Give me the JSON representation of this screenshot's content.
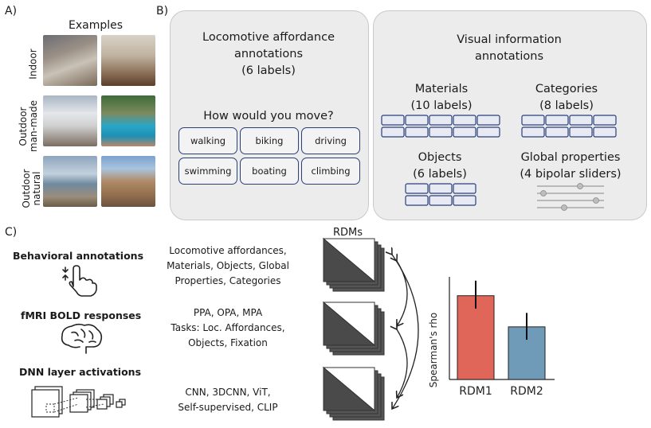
{
  "panel_a": {
    "letter": "A)",
    "heading": "Examples",
    "rows": [
      {
        "label_line1": "Indoor",
        "label_line2": ""
      },
      {
        "label_line1": "Outdoor",
        "label_line2": "man-made"
      },
      {
        "label_line1": "Outdoor",
        "label_line2": "natural"
      }
    ]
  },
  "panel_b": {
    "letter": "B)",
    "locomotive": {
      "title_line1": "Locomotive affordance",
      "title_line2": "annotations",
      "title_line3": "(6 labels)",
      "question": "How would you move?",
      "labels": [
        "walking",
        "biking",
        "driving",
        "swimming",
        "boating",
        "climbing"
      ]
    },
    "visual": {
      "title_line1": "Visual information",
      "title_line2": "annotations",
      "materials": {
        "name": "Materials",
        "count": "(10 labels)"
      },
      "categories": {
        "name": "Categories",
        "count": "(8 labels)"
      },
      "objects": {
        "name": "Objects",
        "count": "(6 labels)"
      },
      "global": {
        "name": "Global properties",
        "count": "(4 bipolar sliders)"
      }
    }
  },
  "panel_c": {
    "letter": "C)",
    "sources": [
      {
        "title": "Behavioral annotations",
        "icon": "touch-hand-icon",
        "lines": [
          "Locomotive affordances,",
          "Materials, Objects, Global",
          "Properties, Categories"
        ]
      },
      {
        "title": "fMRI BOLD responses",
        "icon": "brain-icon",
        "lines": [
          "PPA, OPA, MPA",
          "Tasks: Loc. Affordances,",
          "Objects, Fixation"
        ]
      },
      {
        "title": "DNN layer activations",
        "icon": "cnn-layers-icon",
        "lines": [
          "CNN, 3DCNN, ViT,",
          "Self-supervised,  CLIP"
        ]
      }
    ],
    "rdms_label": "RDMs"
  },
  "colors": {
    "rdm1": "#e0665a",
    "rdm2": "#6f9ab8",
    "label_border": "#2b3f77"
  },
  "chart_data": {
    "type": "bar",
    "categories": [
      "RDM1",
      "RDM2"
    ],
    "values": [
      0.78,
      0.49
    ],
    "errors": [
      [
        0.66,
        0.92
      ],
      [
        0.37,
        0.62
      ]
    ],
    "ylabel": "Spearman's rho",
    "ylim": [
      0,
      1
    ],
    "grid": false
  }
}
